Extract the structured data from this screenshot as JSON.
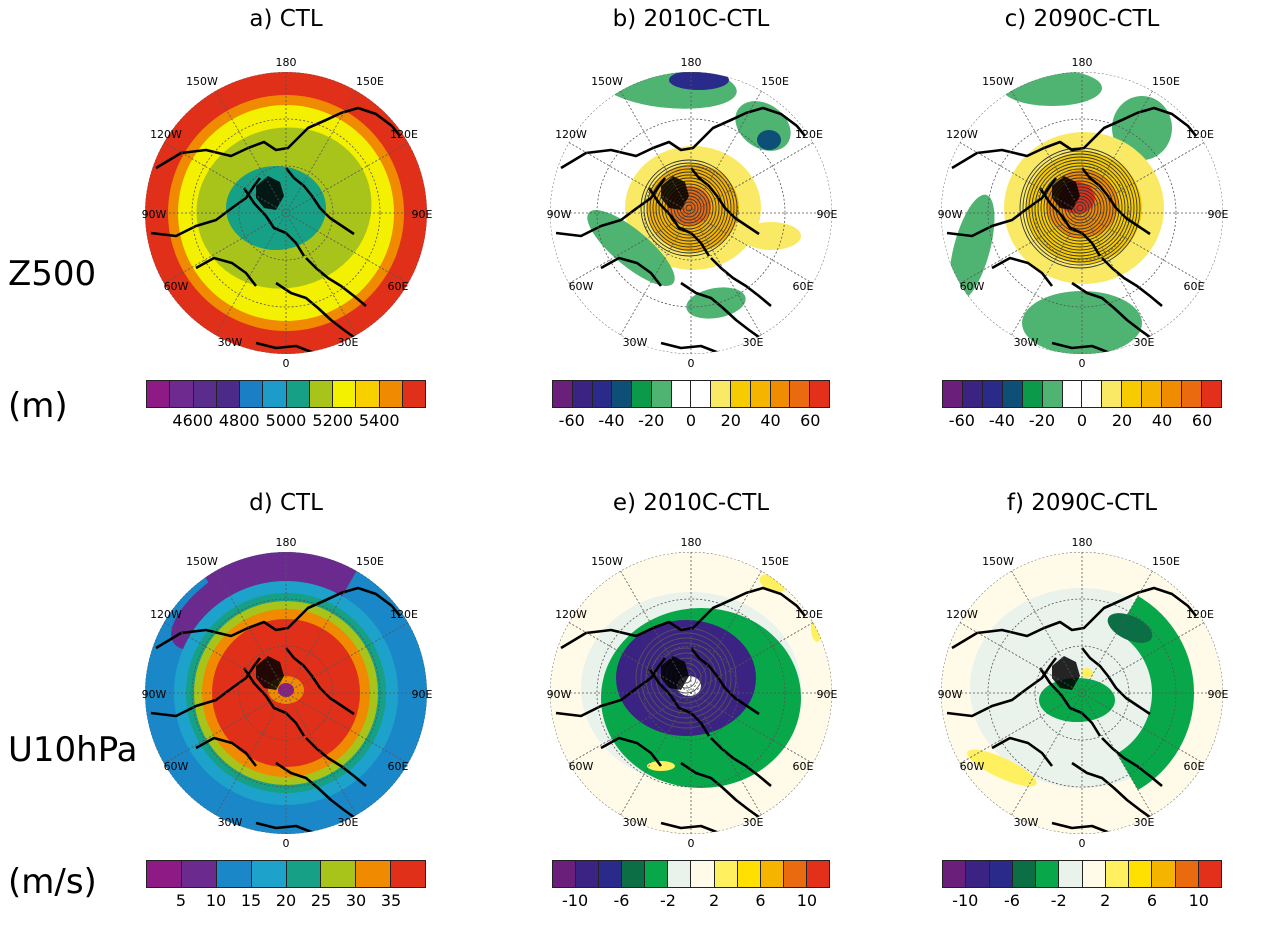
{
  "rows": [
    {
      "label_line1": "Z500",
      "label_line2": "(m)"
    },
    {
      "label_line1": "U10hPa",
      "label_line2": "(m/s)"
    }
  ],
  "panels": [
    {
      "id": "a",
      "title": "a) CTL",
      "kind": "z500_ctl"
    },
    {
      "id": "b",
      "title": "b) 2010C-CTL",
      "kind": "z500_diff10"
    },
    {
      "id": "c",
      "title": "c) 2090C-CTL",
      "kind": "z500_diff90"
    },
    {
      "id": "d",
      "title": "d) CTL",
      "kind": "u10_ctl"
    },
    {
      "id": "e",
      "title": "e) 2010C-CTL",
      "kind": "u10_diff10"
    },
    {
      "id": "f",
      "title": "f) 2090C-CTL",
      "kind": "u10_diff90"
    }
  ],
  "longitude_labels": {
    "top": "180",
    "bottom": "0",
    "left": [
      "150W",
      "120W",
      "90W",
      "60W",
      "30W"
    ],
    "right": [
      "150E",
      "120E",
      "90E",
      "60E",
      "30E"
    ]
  },
  "colorbars": {
    "z500_ctl": {
      "colors": [
        "#8e1a85",
        "#6e2a8e",
        "#5a2d8c",
        "#4b2a8a",
        "#1a7fc4",
        "#1d9bc9",
        "#16a085",
        "#a8c41a",
        "#f3f000",
        "#f8d000",
        "#f08a00",
        "#e0301a"
      ],
      "ticks": [
        "4600",
        "4800",
        "5000",
        "5200",
        "5400"
      ]
    },
    "z500_diff": {
      "colors": [
        "#6a1f7a",
        "#3a2382",
        "#2a2a8a",
        "#0d4f76",
        "#0a9a4a",
        "#4fb472",
        "#ffffff",
        "#ffffff",
        "#fae964",
        "#f6cc00",
        "#f5b400",
        "#f08c00",
        "#ea6a10",
        "#e2301a"
      ],
      "ticks": [
        "-60",
        "-40",
        "-20",
        "0",
        "20",
        "40",
        "60"
      ]
    },
    "u10_ctl": {
      "colors": [
        "#8e1a85",
        "#6a2a8e",
        "#1a88c8",
        "#1da2cc",
        "#16a085",
        "#a8c41a",
        "#f08a00",
        "#e0301a"
      ],
      "ticks": [
        "5",
        "10",
        "15",
        "20",
        "25",
        "30",
        "35"
      ]
    },
    "u10_diff": {
      "colors": [
        "#6a1f7a",
        "#3a2382",
        "#2a2a8a",
        "#0b6e45",
        "#08a84a",
        "#eaf2ec",
        "#fffbe8",
        "#fff060",
        "#ffe000",
        "#f5b400",
        "#ea6a10",
        "#e2301a"
      ],
      "ticks": [
        "-10",
        "-6",
        "-2",
        "2",
        "6",
        "10"
      ]
    }
  }
}
